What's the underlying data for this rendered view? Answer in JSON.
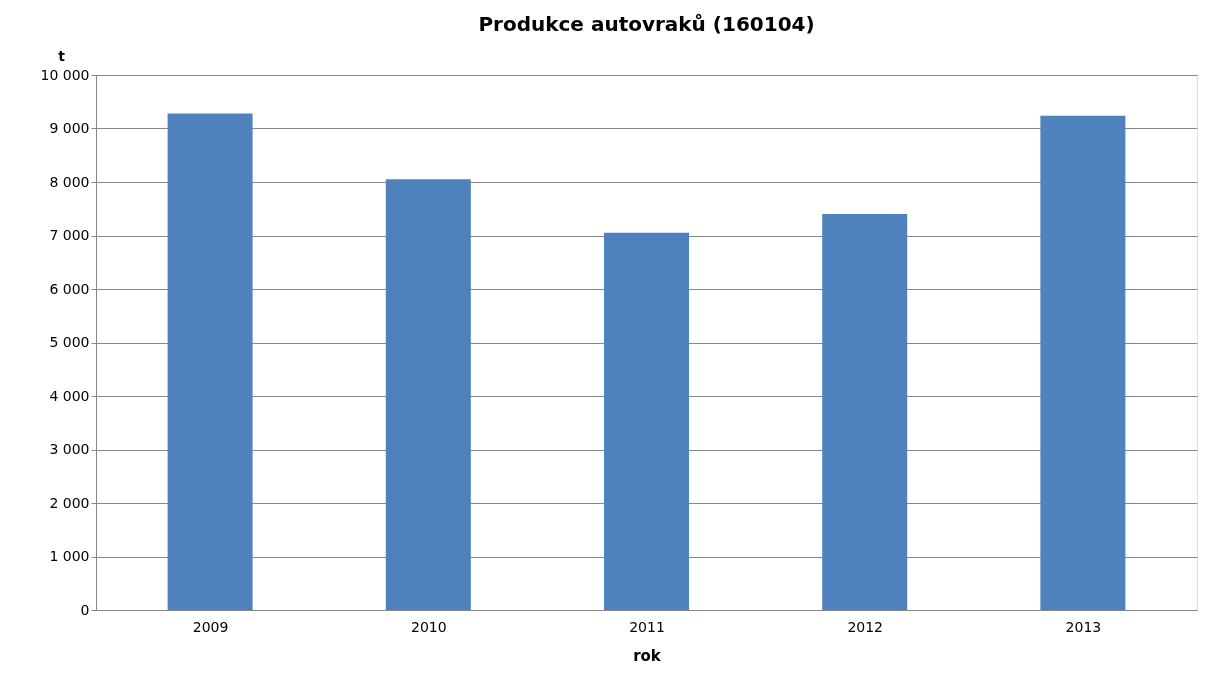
{
  "chart_data": {
    "type": "bar",
    "title": "Produkce autovraků (160104)",
    "ylabel": "t",
    "xlabel": "rok",
    "categories": [
      "2009",
      "2010",
      "2011",
      "2012",
      "2013"
    ],
    "values": [
      9280,
      8050,
      7050,
      7400,
      9240
    ],
    "color": "#4f81bd",
    "ylim": [
      0,
      10000
    ],
    "yticks": [
      {
        "value": 0,
        "label": "0"
      },
      {
        "value": 1000,
        "label": "1 000"
      },
      {
        "value": 2000,
        "label": "2 000"
      },
      {
        "value": 3000,
        "label": "3 000"
      },
      {
        "value": 4000,
        "label": "4 000"
      },
      {
        "value": 5000,
        "label": "5 000"
      },
      {
        "value": 6000,
        "label": "6 000"
      },
      {
        "value": 7000,
        "label": "7 000"
      },
      {
        "value": 8000,
        "label": "8 000"
      },
      {
        "value": 9000,
        "label": "9 000"
      },
      {
        "value": 10000,
        "label": "10 000"
      }
    ],
    "grid": "y"
  }
}
